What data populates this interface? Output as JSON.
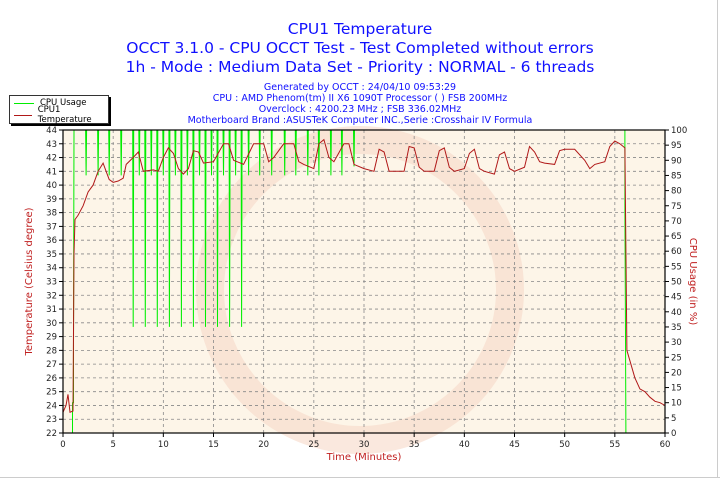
{
  "header": {
    "title": "CPU1 Temperature",
    "subtitle1": "OCCT 3.1.0 - CPU OCCT Test - Test Completed without errors",
    "subtitle2": "1h - Mode : Medium Data Set - Priority : NORMAL - 6 threads",
    "info": [
      "Generated by OCCT : 24/04/10 09:53:29",
      "CPU : AMD Phenom(tm) II X6 1090T Processor (  ) FSB 200MHz",
      "Overclock : 4200.23 MHz ; FSB 336.02MHz",
      "Motherboard Brand :ASUSTeK Computer INC.,Serie :Crosshair IV Formula"
    ]
  },
  "colors": {
    "title": "#1010ff",
    "usage": "#00ee00",
    "temperature": "#b01818",
    "plot_bg": "#fdf5e8",
    "axis_label": "#c02020"
  },
  "chart_data": {
    "type": "line",
    "title": "CPU1 Temperature",
    "xlabel": "Time (Minutes)",
    "ylabel": "Temperature (Celsius degree)",
    "y2label": "CPU Usage (in %)",
    "xlim": [
      0,
      60
    ],
    "ylim": [
      22,
      44
    ],
    "y2lim": [
      0,
      100
    ],
    "xticks": [
      0,
      5,
      10,
      15,
      20,
      25,
      30,
      35,
      40,
      45,
      50,
      55,
      60
    ],
    "yticks": [
      22,
      23,
      24,
      25,
      26,
      27,
      28,
      29,
      30,
      31,
      32,
      33,
      34,
      35,
      36,
      37,
      38,
      39,
      40,
      41,
      42,
      43,
      44
    ],
    "y2ticks": [
      0,
      5,
      10,
      15,
      20,
      25,
      30,
      35,
      40,
      45,
      50,
      55,
      60,
      65,
      70,
      75,
      80,
      85,
      90,
      95,
      100
    ],
    "grid": true,
    "legend_placement": "top-left",
    "series": [
      {
        "name": "CPU Usage",
        "axis": "right",
        "points": [
          [
            0,
            0
          ],
          [
            0.95,
            0
          ],
          [
            0.95,
            10
          ],
          [
            1.05,
            10
          ],
          [
            1.05,
            30
          ],
          [
            1.1,
            100
          ],
          [
            2.25,
            100
          ],
          [
            2.3,
            85
          ],
          [
            2.35,
            100
          ],
          [
            3.45,
            100
          ],
          [
            3.5,
            85
          ],
          [
            3.55,
            100
          ],
          [
            4.55,
            100
          ],
          [
            4.6,
            85
          ],
          [
            4.65,
            100
          ],
          [
            5.75,
            100
          ],
          [
            5.8,
            85
          ],
          [
            5.85,
            100
          ],
          [
            6.95,
            100
          ],
          [
            7.0,
            35
          ],
          [
            7.05,
            100
          ],
          [
            7.55,
            100
          ],
          [
            7.6,
            85
          ],
          [
            7.65,
            100
          ],
          [
            8.15,
            100
          ],
          [
            8.2,
            35
          ],
          [
            8.25,
            100
          ],
          [
            8.75,
            100
          ],
          [
            8.8,
            85
          ],
          [
            8.85,
            100
          ],
          [
            9.35,
            100
          ],
          [
            9.4,
            35
          ],
          [
            9.45,
            100
          ],
          [
            9.95,
            100
          ],
          [
            10.0,
            85
          ],
          [
            10.05,
            100
          ],
          [
            10.55,
            100
          ],
          [
            10.6,
            35
          ],
          [
            10.65,
            100
          ],
          [
            11.15,
            100
          ],
          [
            11.2,
            85
          ],
          [
            11.25,
            100
          ],
          [
            11.75,
            100
          ],
          [
            11.8,
            35
          ],
          [
            11.85,
            100
          ],
          [
            12.35,
            100
          ],
          [
            12.4,
            85
          ],
          [
            12.45,
            100
          ],
          [
            12.95,
            100
          ],
          [
            13.0,
            35
          ],
          [
            13.05,
            100
          ],
          [
            13.55,
            100
          ],
          [
            13.6,
            85
          ],
          [
            13.65,
            100
          ],
          [
            14.15,
            100
          ],
          [
            14.2,
            35
          ],
          [
            14.25,
            100
          ],
          [
            14.75,
            100
          ],
          [
            14.8,
            85
          ],
          [
            14.85,
            100
          ],
          [
            15.35,
            100
          ],
          [
            15.4,
            35
          ],
          [
            15.45,
            100
          ],
          [
            15.95,
            100
          ],
          [
            16.0,
            85
          ],
          [
            16.05,
            100
          ],
          [
            16.55,
            100
          ],
          [
            16.6,
            35
          ],
          [
            16.65,
            100
          ],
          [
            17.15,
            100
          ],
          [
            17.2,
            85
          ],
          [
            17.25,
            100
          ],
          [
            17.75,
            100
          ],
          [
            17.8,
            35
          ],
          [
            17.85,
            100
          ],
          [
            18.45,
            100
          ],
          [
            18.5,
            85
          ],
          [
            18.55,
            100
          ],
          [
            19.55,
            100
          ],
          [
            19.6,
            85
          ],
          [
            19.65,
            100
          ],
          [
            20.75,
            100
          ],
          [
            20.8,
            85
          ],
          [
            20.85,
            100
          ],
          [
            22.05,
            100
          ],
          [
            22.1,
            85
          ],
          [
            22.15,
            100
          ],
          [
            23.15,
            100
          ],
          [
            23.2,
            85
          ],
          [
            23.25,
            100
          ],
          [
            24.35,
            100
          ],
          [
            24.4,
            85
          ],
          [
            24.45,
            100
          ],
          [
            25.45,
            100
          ],
          [
            25.5,
            85
          ],
          [
            25.55,
            100
          ],
          [
            26.65,
            100
          ],
          [
            26.7,
            85
          ],
          [
            26.75,
            100
          ],
          [
            27.75,
            100
          ],
          [
            27.8,
            85
          ],
          [
            27.85,
            100
          ],
          [
            28.95,
            100
          ],
          [
            29.0,
            88
          ],
          [
            29.05,
            100
          ],
          [
            56.0,
            100
          ],
          [
            56.0,
            75
          ],
          [
            56.05,
            40
          ],
          [
            56.1,
            0
          ],
          [
            60,
            0
          ]
        ]
      },
      {
        "name": "CPU1 Temperature",
        "axis": "left",
        "points": [
          [
            0,
            23.5
          ],
          [
            0.3,
            24
          ],
          [
            0.5,
            24.8
          ],
          [
            0.7,
            23.5
          ],
          [
            1.0,
            23.6
          ],
          [
            1.1,
            35
          ],
          [
            1.2,
            37.5
          ],
          [
            1.5,
            37.8
          ],
          [
            2,
            38.5
          ],
          [
            2.5,
            39.5
          ],
          [
            3,
            40
          ],
          [
            3.5,
            41
          ],
          [
            4,
            41.6
          ],
          [
            4.3,
            41
          ],
          [
            4.6,
            40.4
          ],
          [
            5,
            40.2
          ],
          [
            5.5,
            40.3
          ],
          [
            6,
            40.5
          ],
          [
            6.3,
            41.5
          ],
          [
            7,
            42
          ],
          [
            7.5,
            42.4
          ],
          [
            8,
            41
          ],
          [
            9,
            41.1
          ],
          [
            9.5,
            41
          ],
          [
            10,
            42
          ],
          [
            10.5,
            42.7
          ],
          [
            11,
            42.3
          ],
          [
            11.5,
            41.2
          ],
          [
            12,
            40.8
          ],
          [
            12.5,
            41.2
          ],
          [
            13,
            42.5
          ],
          [
            13.5,
            42.4
          ],
          [
            14,
            41.6
          ],
          [
            15,
            41.7
          ],
          [
            16,
            43
          ],
          [
            16.5,
            43
          ],
          [
            17,
            41.8
          ],
          [
            18,
            41.5
          ],
          [
            19,
            43
          ],
          [
            20,
            43
          ],
          [
            20.5,
            41.7
          ],
          [
            21,
            42
          ],
          [
            22,
            43
          ],
          [
            23,
            43
          ],
          [
            23.5,
            41.7
          ],
          [
            24,
            41.5
          ],
          [
            25,
            41.2
          ],
          [
            25.5,
            43
          ],
          [
            26,
            43.3
          ],
          [
            26.5,
            42
          ],
          [
            27,
            41.7
          ],
          [
            28,
            43
          ],
          [
            28.5,
            43
          ],
          [
            29,
            41.5
          ],
          [
            30,
            41.2
          ],
          [
            31,
            41
          ],
          [
            31.5,
            42.6
          ],
          [
            32,
            42.4
          ],
          [
            32.5,
            41
          ],
          [
            33,
            41
          ],
          [
            34,
            41
          ],
          [
            34.5,
            42.8
          ],
          [
            35,
            42.7
          ],
          [
            35.5,
            41.3
          ],
          [
            36,
            41
          ],
          [
            37,
            41
          ],
          [
            37.5,
            42.5
          ],
          [
            38,
            42.7
          ],
          [
            38.5,
            41.3
          ],
          [
            39,
            41
          ],
          [
            40,
            41.2
          ],
          [
            40.5,
            42.3
          ],
          [
            41,
            42.6
          ],
          [
            41.5,
            41.2
          ],
          [
            42,
            41
          ],
          [
            43,
            40.8
          ],
          [
            43.5,
            42.2
          ],
          [
            44,
            42.4
          ],
          [
            44.5,
            41.2
          ],
          [
            45,
            41
          ],
          [
            46,
            41.3
          ],
          [
            46.5,
            42.8
          ],
          [
            47,
            42.4
          ],
          [
            47.5,
            41.7
          ],
          [
            48,
            41.6
          ],
          [
            49,
            41.5
          ],
          [
            49.5,
            42.5
          ],
          [
            50,
            42.6
          ],
          [
            51,
            42.6
          ],
          [
            52,
            41.8
          ],
          [
            52.5,
            41.2
          ],
          [
            53,
            41.5
          ],
          [
            54,
            41.7
          ],
          [
            54.5,
            42.8
          ],
          [
            55,
            43.2
          ],
          [
            55.5,
            43
          ],
          [
            56,
            42.7
          ],
          [
            56.2,
            28
          ],
          [
            57,
            26
          ],
          [
            57.5,
            25.2
          ],
          [
            58,
            25
          ],
          [
            58.5,
            24.6
          ],
          [
            59,
            24.3
          ],
          [
            59.5,
            24.2
          ],
          [
            60,
            24
          ]
        ]
      }
    ]
  }
}
